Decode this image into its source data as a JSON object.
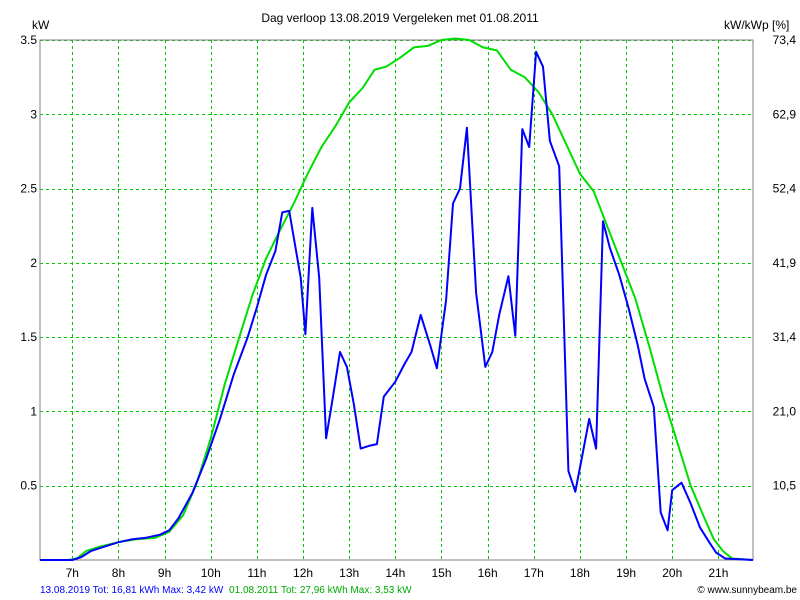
{
  "header": {
    "title": "Dag  verloop 13.08.2019    Vergeleken met 01.08.2011",
    "left_unit": "kW",
    "right_unit": "kW/kWp [%]"
  },
  "footer": {
    "series1_text": "13.08.2019 Tot: 16,81 kWh Max: 3,42 kW",
    "series2_text": "01.08.2011 Tot: 27,96 kWh Max: 3,53 kW",
    "credit": "© www.sunnybeam.be",
    "series1_color": "#0000ff",
    "series2_color": "#00aa00",
    "credit_color": "#000000"
  },
  "chart_data": {
    "type": "line",
    "x_unit": "hour",
    "xlim": [
      6.3,
      21.75
    ],
    "ylim": [
      0,
      3.5
    ],
    "grid": true,
    "x_ticks": [
      {
        "x": 7,
        "label": "7h"
      },
      {
        "x": 8,
        "label": "8h"
      },
      {
        "x": 9,
        "label": "9h"
      },
      {
        "x": 10,
        "label": "10h"
      },
      {
        "x": 11,
        "label": "11h"
      },
      {
        "x": 12,
        "label": "12h"
      },
      {
        "x": 13,
        "label": "13h"
      },
      {
        "x": 14,
        "label": "14h"
      },
      {
        "x": 15,
        "label": "15h"
      },
      {
        "x": 16,
        "label": "16h"
      },
      {
        "x": 17,
        "label": "17h"
      },
      {
        "x": 18,
        "label": "18h"
      },
      {
        "x": 19,
        "label": "19h"
      },
      {
        "x": 20,
        "label": "20h"
      },
      {
        "x": 21,
        "label": "21h"
      }
    ],
    "y_left_ticks": [
      {
        "y": 0.5,
        "label": "0.5"
      },
      {
        "y": 1.0,
        "label": "1"
      },
      {
        "y": 1.5,
        "label": "1.5"
      },
      {
        "y": 2.0,
        "label": "2"
      },
      {
        "y": 2.5,
        "label": "2.5"
      },
      {
        "y": 3.0,
        "label": "3"
      },
      {
        "y": 3.5,
        "label": "3.5"
      }
    ],
    "y_right_ticks": [
      {
        "y": 0.5,
        "label": "10,5"
      },
      {
        "y": 1.0,
        "label": "21,0"
      },
      {
        "y": 1.5,
        "label": "31,4"
      },
      {
        "y": 2.0,
        "label": "41,9"
      },
      {
        "y": 2.5,
        "label": "52,4"
      },
      {
        "y": 3.0,
        "label": "62,9"
      },
      {
        "y": 3.5,
        "label": "73,4"
      }
    ],
    "series": [
      {
        "color": "#0000ff",
        "points": [
          [
            6.3,
            0
          ],
          [
            7.0,
            0
          ],
          [
            7.2,
            0.02
          ],
          [
            7.4,
            0.06
          ],
          [
            7.7,
            0.09
          ],
          [
            8.0,
            0.12
          ],
          [
            8.3,
            0.14
          ],
          [
            8.6,
            0.15
          ],
          [
            8.9,
            0.17
          ],
          [
            9.1,
            0.2
          ],
          [
            9.3,
            0.28
          ],
          [
            9.6,
            0.45
          ],
          [
            9.9,
            0.68
          ],
          [
            10.2,
            0.95
          ],
          [
            10.5,
            1.25
          ],
          [
            10.8,
            1.5
          ],
          [
            11.0,
            1.7
          ],
          [
            11.2,
            1.92
          ],
          [
            11.4,
            2.08
          ],
          [
            11.55,
            2.34
          ],
          [
            11.7,
            2.35
          ],
          [
            11.95,
            1.9
          ],
          [
            12.05,
            1.52
          ],
          [
            12.2,
            2.37
          ],
          [
            12.35,
            1.9
          ],
          [
            12.5,
            0.82
          ],
          [
            12.65,
            1.1
          ],
          [
            12.8,
            1.4
          ],
          [
            12.95,
            1.3
          ],
          [
            13.1,
            1.05
          ],
          [
            13.25,
            0.75
          ],
          [
            13.45,
            0.77
          ],
          [
            13.6,
            0.78
          ],
          [
            13.75,
            1.1
          ],
          [
            14.0,
            1.2
          ],
          [
            14.2,
            1.32
          ],
          [
            14.35,
            1.4
          ],
          [
            14.55,
            1.65
          ],
          [
            14.75,
            1.45
          ],
          [
            14.9,
            1.29
          ],
          [
            15.1,
            1.75
          ],
          [
            15.25,
            2.4
          ],
          [
            15.4,
            2.5
          ],
          [
            15.55,
            2.91
          ],
          [
            15.75,
            1.8
          ],
          [
            15.95,
            1.3
          ],
          [
            16.1,
            1.4
          ],
          [
            16.25,
            1.65
          ],
          [
            16.45,
            1.91
          ],
          [
            16.6,
            1.51
          ],
          [
            16.75,
            2.9
          ],
          [
            16.9,
            2.78
          ],
          [
            17.05,
            3.42
          ],
          [
            17.2,
            3.32
          ],
          [
            17.35,
            2.82
          ],
          [
            17.55,
            2.65
          ],
          [
            17.75,
            0.6
          ],
          [
            17.9,
            0.46
          ],
          [
            18.05,
            0.7
          ],
          [
            18.2,
            0.95
          ],
          [
            18.35,
            0.75
          ],
          [
            18.5,
            2.28
          ],
          [
            18.65,
            2.1
          ],
          [
            18.85,
            1.92
          ],
          [
            19.05,
            1.7
          ],
          [
            19.25,
            1.45
          ],
          [
            19.4,
            1.22
          ],
          [
            19.6,
            1.03
          ],
          [
            19.75,
            0.32
          ],
          [
            19.9,
            0.2
          ],
          [
            20.0,
            0.47
          ],
          [
            20.2,
            0.52
          ],
          [
            20.4,
            0.38
          ],
          [
            20.6,
            0.22
          ],
          [
            20.8,
            0.12
          ],
          [
            20.95,
            0.05
          ],
          [
            21.15,
            0.01
          ],
          [
            21.75,
            0
          ]
        ]
      },
      {
        "color": "#00dd00",
        "points": [
          [
            6.3,
            0
          ],
          [
            6.9,
            0
          ],
          [
            7.1,
            0.01
          ],
          [
            7.3,
            0.06
          ],
          [
            7.6,
            0.09
          ],
          [
            8.0,
            0.12
          ],
          [
            8.4,
            0.14
          ],
          [
            8.8,
            0.15
          ],
          [
            9.1,
            0.19
          ],
          [
            9.4,
            0.3
          ],
          [
            9.7,
            0.52
          ],
          [
            10.0,
            0.82
          ],
          [
            10.3,
            1.18
          ],
          [
            10.6,
            1.48
          ],
          [
            10.9,
            1.78
          ],
          [
            11.2,
            2.03
          ],
          [
            11.5,
            2.22
          ],
          [
            11.8,
            2.4
          ],
          [
            12.1,
            2.6
          ],
          [
            12.4,
            2.78
          ],
          [
            12.7,
            2.92
          ],
          [
            13.0,
            3.08
          ],
          [
            13.3,
            3.18
          ],
          [
            13.55,
            3.3
          ],
          [
            13.8,
            3.32
          ],
          [
            14.1,
            3.38
          ],
          [
            14.4,
            3.45
          ],
          [
            14.7,
            3.46
          ],
          [
            15.0,
            3.5
          ],
          [
            15.3,
            3.51
          ],
          [
            15.6,
            3.5
          ],
          [
            15.9,
            3.45
          ],
          [
            16.2,
            3.43
          ],
          [
            16.5,
            3.3
          ],
          [
            16.8,
            3.25
          ],
          [
            17.1,
            3.15
          ],
          [
            17.4,
            3.0
          ],
          [
            17.7,
            2.8
          ],
          [
            18.0,
            2.6
          ],
          [
            18.3,
            2.48
          ],
          [
            18.6,
            2.24
          ],
          [
            18.9,
            2.0
          ],
          [
            19.2,
            1.76
          ],
          [
            19.5,
            1.44
          ],
          [
            19.8,
            1.1
          ],
          [
            20.1,
            0.8
          ],
          [
            20.4,
            0.5
          ],
          [
            20.7,
            0.28
          ],
          [
            20.9,
            0.14
          ],
          [
            21.1,
            0.06
          ],
          [
            21.3,
            0.01
          ],
          [
            21.75,
            0
          ]
        ]
      }
    ]
  }
}
